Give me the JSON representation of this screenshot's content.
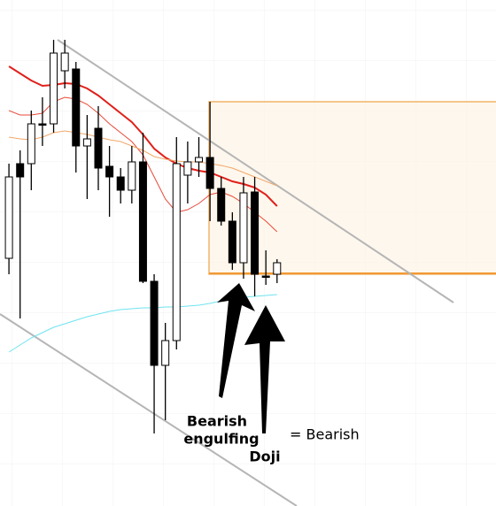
{
  "chart_data": {
    "type": "candlestick",
    "x": [
      0,
      1,
      2,
      3,
      4,
      5,
      6,
      7,
      8,
      9,
      10,
      11,
      12,
      13,
      14,
      15,
      16,
      17,
      18,
      19,
      20,
      21,
      22,
      23,
      24
    ],
    "xlim": [
      -0.8,
      43.6
    ],
    "ylim": [
      0,
      572
    ],
    "up_color": "#ffffff",
    "down_color": "#000000",
    "open": [
      280,
      387,
      387,
      432,
      432,
      492,
      494,
      407,
      427,
      384,
      372,
      357,
      389,
      254,
      159,
      187,
      374,
      389,
      394,
      359,
      322,
      275,
      355,
      260,
      262
    ],
    "high": [
      387,
      402,
      447,
      462,
      527,
      527,
      502,
      442,
      452,
      407,
      382,
      407,
      422,
      262,
      207,
      417,
      412,
      417,
      457,
      372,
      332,
      372,
      372,
      289,
      279
    ],
    "low": [
      262,
      212,
      357,
      407,
      422,
      472,
      377,
      347,
      357,
      327,
      342,
      342,
      252,
      82,
      97,
      177,
      342,
      372,
      322,
      317,
      267,
      257,
      237,
      250,
      252
    ],
    "close": [
      372,
      372,
      432,
      431,
      512,
      512,
      407,
      415,
      382,
      372,
      357,
      389,
      254,
      159,
      187,
      387,
      389,
      394,
      359,
      322,
      275,
      354,
      262,
      259,
      275
    ],
    "lines": [
      {
        "color": "#e0201b",
        "width": 2,
        "values": [
          497,
          489,
          481,
          475,
          476,
          478,
          477,
          472,
          464,
          454,
          444,
          434,
          420,
          404,
          394,
          387,
          382,
          379,
          377,
          372,
          367,
          364,
          360,
          352,
          339
        ]
      },
      {
        "color": "#e84a3a",
        "width": 1,
        "values": [
          447,
          442,
          442,
          444,
          457,
          462,
          460,
          454,
          444,
          432,
          422,
          412,
          397,
          372,
          347,
          332,
          335,
          342,
          352,
          355,
          350,
          342,
          332,
          322,
          310
        ]
      },
      {
        "color": "#f0a86a",
        "width": 1,
        "values": [
          417,
          415,
          414,
          417,
          422,
          424,
          422,
          420,
          417,
          414,
          412,
          407,
          402,
          395,
          392,
          390,
          389,
          389,
          387,
          385,
          382,
          377,
          372,
          367,
          362
        ]
      },
      {
        "color": "#6fe3ef",
        "width": 1,
        "values": [
          174,
          182,
          190,
          196,
          202,
          206,
          210,
          214,
          217,
          220,
          222,
          223,
          224,
          224,
          225,
          225,
          226,
          227,
          229,
          232,
          234,
          236,
          237,
          238,
          239
        ]
      }
    ],
    "annotations": [
      "Bearish",
      "engulfing",
      "Doji",
      "= Bearish"
    ]
  }
}
